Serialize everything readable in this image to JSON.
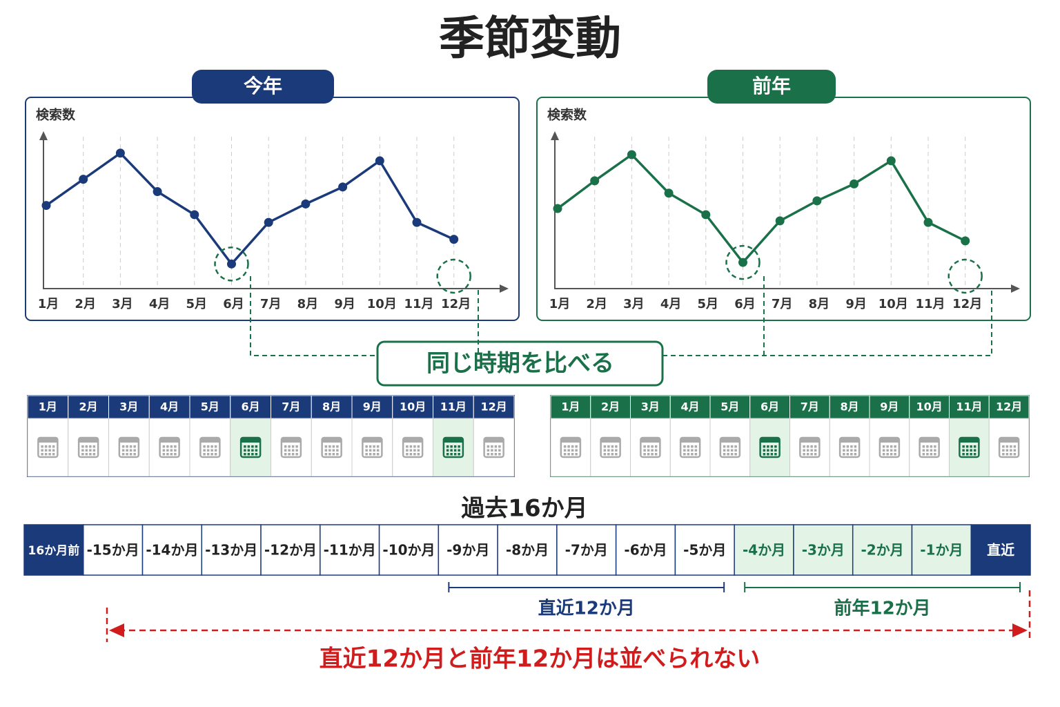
{
  "title": "季節変動",
  "chart_data": [
    {
      "type": "line",
      "label": "今年",
      "ylabel": "検索数",
      "color": "#1b3a7a",
      "grid": true,
      "ylim": [
        0,
        100
      ],
      "categories": [
        "1月",
        "2月",
        "3月",
        "4月",
        "5月",
        "6月",
        "7月",
        "8月",
        "9月",
        "10月",
        "11月",
        "12月"
      ],
      "values": [
        54,
        71,
        88,
        63,
        48,
        16,
        43,
        55,
        66,
        83,
        43,
        32
      ]
    },
    {
      "type": "line",
      "label": "前年",
      "ylabel": "検索数",
      "color": "#1a7048",
      "grid": true,
      "ylim": [
        0,
        100
      ],
      "categories": [
        "1月",
        "2月",
        "3月",
        "4月",
        "5月",
        "6月",
        "7月",
        "8月",
        "9月",
        "10月",
        "11月",
        "12月"
      ],
      "values": [
        52,
        70,
        87,
        62,
        48,
        17,
        44,
        57,
        68,
        83,
        43,
        31
      ]
    }
  ],
  "compare": "同じ時期を比べる",
  "calendar": {
    "highlight": [
      5,
      10
    ]
  },
  "timeline": {
    "title": "過去16か月",
    "cells": [
      "16か月前",
      "-15か月",
      "-14か月",
      "-13か月",
      "-12か月",
      "-11か月",
      "-10か月",
      "-9か月",
      "-8か月",
      "-7か月",
      "-6か月",
      "-5か月",
      "-4か月",
      "-3か月",
      "-2か月",
      "-1か月",
      "直近"
    ],
    "recent_label": "直近12か月",
    "prior_label": "前年12か月",
    "note": "直近12か月と前年12か月は並べられない"
  }
}
